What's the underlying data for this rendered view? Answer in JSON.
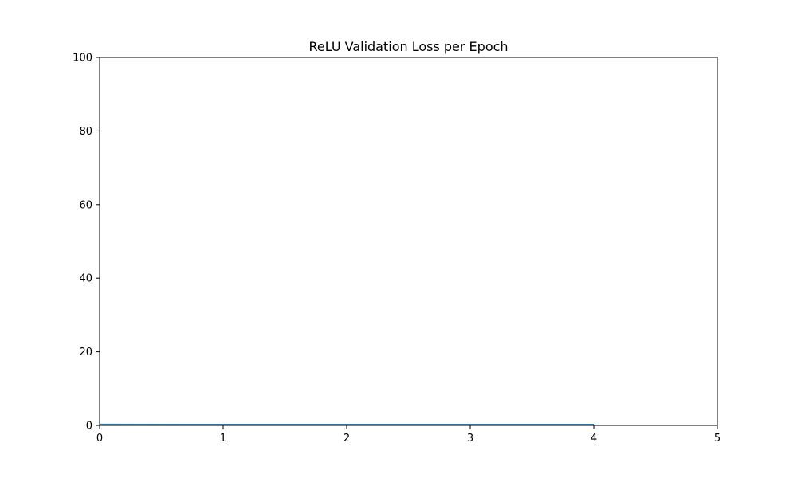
{
  "chart_data": {
    "type": "line",
    "title": "ReLU Validation Loss per Epoch",
    "xlabel": "",
    "ylabel": "",
    "xlim": [
      0,
      5
    ],
    "ylim": [
      0,
      100
    ],
    "x_ticks": [
      "0",
      "1",
      "2",
      "3",
      "4",
      "5"
    ],
    "y_ticks": [
      "0",
      "20",
      "40",
      "60",
      "80",
      "100"
    ],
    "grid": false,
    "series": [
      {
        "color": "#1f77b4",
        "x": [
          0,
          1,
          2,
          3,
          4
        ],
        "y": [
          0.3,
          0.28,
          0.27,
          0.26,
          0.26
        ]
      }
    ]
  }
}
